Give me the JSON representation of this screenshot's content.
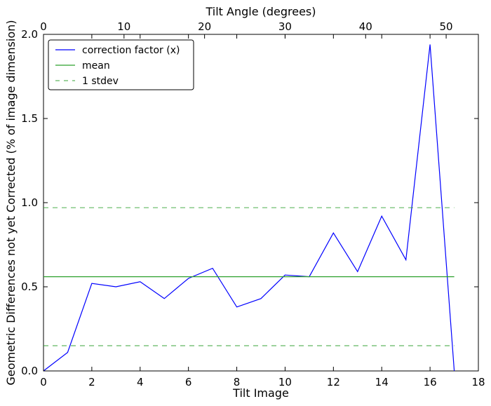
{
  "chart_data": {
    "type": "line",
    "xlabel": "Tilt Image",
    "ylabel": "Geometric Differences not yet Corrected (% of image dimension)",
    "top_xlabel": "Tilt Angle (degrees)",
    "xlim": [
      0,
      18
    ],
    "ylim": [
      0.0,
      2.0
    ],
    "top_xlim": [
      0,
      54
    ],
    "x_ticks": [
      "0",
      "2",
      "4",
      "6",
      "8",
      "10",
      "12",
      "14",
      "16",
      "18"
    ],
    "y_ticks": [
      "0.0",
      "0.5",
      "1.0",
      "1.5",
      "2.0"
    ],
    "top_x_ticks": [
      "0",
      "10",
      "20",
      "30",
      "40",
      "50"
    ],
    "grid": false,
    "legend_position": "top-left",
    "series": [
      {
        "name": "correction factor (x)",
        "style": "solid",
        "color": "#0000ff",
        "x": [
          0,
          1,
          2,
          3,
          4,
          5,
          6,
          7,
          8,
          9,
          10,
          11,
          12,
          13,
          14,
          15,
          16,
          17
        ],
        "y": [
          0.0,
          0.11,
          0.52,
          0.5,
          0.53,
          0.43,
          0.55,
          0.61,
          0.38,
          0.43,
          0.57,
          0.56,
          0.82,
          0.59,
          0.92,
          0.66,
          1.94,
          0.0
        ]
      },
      {
        "name": "mean",
        "style": "solid",
        "color": "#2ca02c",
        "x": [
          0,
          17
        ],
        "y": [
          0.56,
          0.56
        ]
      },
      {
        "name": "1 stdev",
        "style": "dashed",
        "color": "#2ca02c",
        "x": [
          0,
          17
        ],
        "y": [
          0.97,
          0.97
        ]
      },
      {
        "name": "",
        "style": "dashed",
        "color": "#2ca02c",
        "x": [
          0,
          17
        ],
        "y": [
          0.15,
          0.15
        ]
      }
    ]
  }
}
